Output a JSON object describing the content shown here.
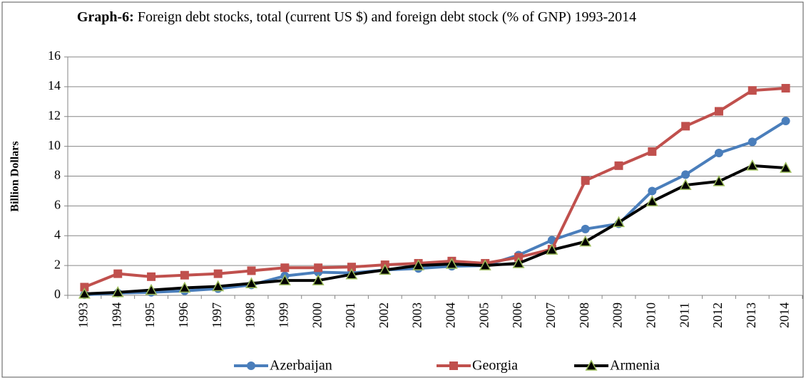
{
  "chart_data": {
    "type": "line",
    "title_label": "Graph-6:",
    "title": "Foreign debt stocks, total (current US $) and foreign debt stock (% of GNP) 1993-2014",
    "y_label": "Billion Dollars",
    "categories": [
      "1993",
      "1994",
      "1995",
      "1996",
      "1997",
      "1998",
      "1999",
      "2000",
      "2001",
      "2002",
      "2003",
      "2004",
      "2005",
      "2006",
      "2007",
      "2008",
      "2009",
      "2010",
      "2011",
      "2012",
      "2013",
      "2014"
    ],
    "series": [
      {
        "name": "Azerbaijan",
        "color": "#4a7ebb",
        "marker": "circle",
        "marker_color": "#4a7ebb",
        "values": [
          0.04,
          0.15,
          0.2,
          0.3,
          0.45,
          0.7,
          1.3,
          1.55,
          1.5,
          1.7,
          1.8,
          1.95,
          2.0,
          2.7,
          3.7,
          4.45,
          4.8,
          7.0,
          8.1,
          9.55,
          10.3,
          11.7
        ]
      },
      {
        "name": "Georgia",
        "color": "#c0504d",
        "marker": "square",
        "marker_color": "#c0504d",
        "values": [
          0.55,
          1.45,
          1.25,
          1.35,
          1.45,
          1.65,
          1.85,
          1.85,
          1.9,
          2.05,
          2.15,
          2.3,
          2.15,
          2.55,
          3.1,
          7.7,
          8.7,
          9.65,
          11.35,
          12.35,
          13.75,
          13.9
        ]
      },
      {
        "name": "Armenia",
        "color": "#000000",
        "marker": "triangle",
        "marker_color": "#9bbb59",
        "values": [
          0.1,
          0.2,
          0.35,
          0.5,
          0.6,
          0.8,
          1.0,
          1.0,
          1.4,
          1.7,
          2.0,
          2.1,
          2.0,
          2.15,
          3.05,
          3.6,
          4.9,
          6.3,
          7.4,
          7.65,
          8.7,
          8.55
        ]
      }
    ],
    "ylim": [
      0,
      16
    ],
    "yticks": [
      0,
      2,
      4,
      6,
      8,
      10,
      12,
      14,
      16
    ],
    "grid": true,
    "legend": "bottom"
  }
}
